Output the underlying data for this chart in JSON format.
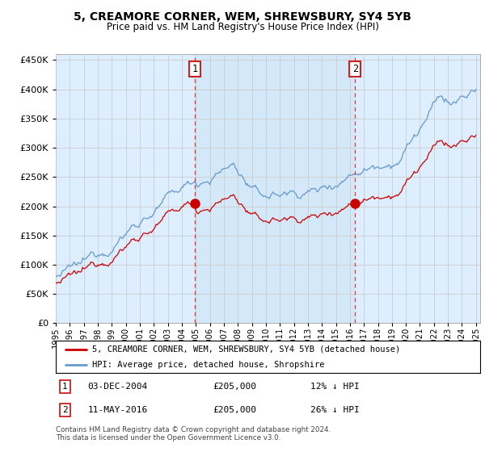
{
  "title": "5, CREAMORE CORNER, WEM, SHREWSBURY, SY4 5YB",
  "subtitle": "Price paid vs. HM Land Registry's House Price Index (HPI)",
  "ylim": [
    0,
    460000
  ],
  "yticks": [
    0,
    50000,
    100000,
    150000,
    200000,
    250000,
    300000,
    350000,
    400000,
    450000
  ],
  "xlim_start": 1995.0,
  "xlim_end": 2025.3,
  "sale1_x": 2004.92,
  "sale1_y": 205000,
  "sale1_label": "1",
  "sale2_x": 2016.37,
  "sale2_y": 205000,
  "sale2_label": "2",
  "legend_entries": [
    "5, CREAMORE CORNER, WEM, SHREWSBURY, SY4 5YB (detached house)",
    "HPI: Average price, detached house, Shropshire"
  ],
  "footnote": "Contains HM Land Registry data © Crown copyright and database right 2024.\nThis data is licensed under the Open Government Licence v3.0.",
  "sale_color": "#cc0000",
  "hpi_color": "#6699cc",
  "bg_color": "#ddeeff",
  "shade_color": "#d0e8f8",
  "plot_bg": "#ffffff",
  "grid_color": "#cccccc",
  "vline_color": "#ee3333"
}
